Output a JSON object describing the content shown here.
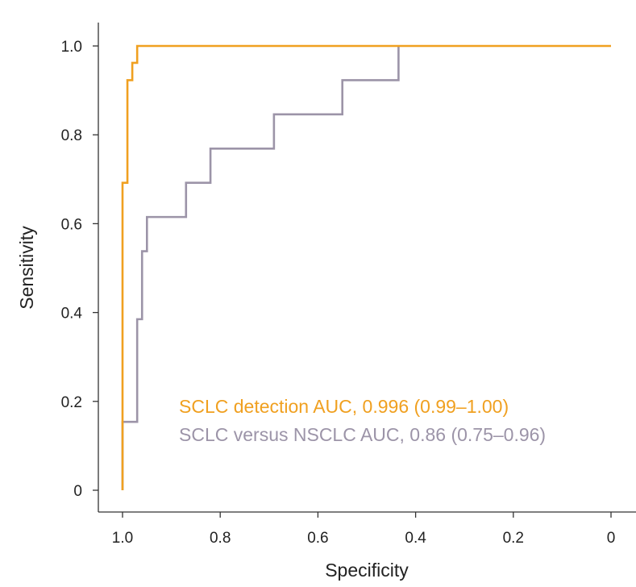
{
  "chart_data": {
    "type": "line",
    "title": "",
    "xlabel": "Specificity",
    "ylabel": "Sensitivity",
    "x_reversed": true,
    "xlim": [
      1.0,
      0
    ],
    "ylim": [
      0,
      1.0
    ],
    "x_ticks": [
      "1.0",
      "0.8",
      "0.6",
      "0.4",
      "0.2",
      "0"
    ],
    "y_ticks": [
      "0",
      "0.2",
      "0.4",
      "0.6",
      "0.8",
      "1.0"
    ],
    "grid": false,
    "legend_position": "lower-right",
    "series": [
      {
        "name": "SCLC detection AUC, 0.996 (0.99–1.00)",
        "color": "#F0A020",
        "step": true,
        "x": [
          1.0,
          1.0,
          0.99,
          0.99,
          0.98,
          0.98,
          0.97,
          0.97,
          0.0
        ],
        "y": [
          0.0,
          0.692,
          0.692,
          0.923,
          0.923,
          0.962,
          0.962,
          1.0,
          1.0
        ]
      },
      {
        "name": "SCLC versus NSCLC AUC, 0.86 (0.75–0.96)",
        "color": "#9C94A8",
        "step": true,
        "x": [
          1.0,
          1.0,
          0.97,
          0.97,
          0.96,
          0.96,
          0.95,
          0.95,
          0.87,
          0.87,
          0.82,
          0.82,
          0.69,
          0.69,
          0.55,
          0.55,
          0.435,
          0.435
        ],
        "y": [
          0.0,
          0.154,
          0.154,
          0.385,
          0.385,
          0.538,
          0.538,
          0.615,
          0.615,
          0.692,
          0.692,
          0.769,
          0.769,
          0.846,
          0.846,
          0.923,
          0.923,
          1.0
        ]
      }
    ]
  }
}
